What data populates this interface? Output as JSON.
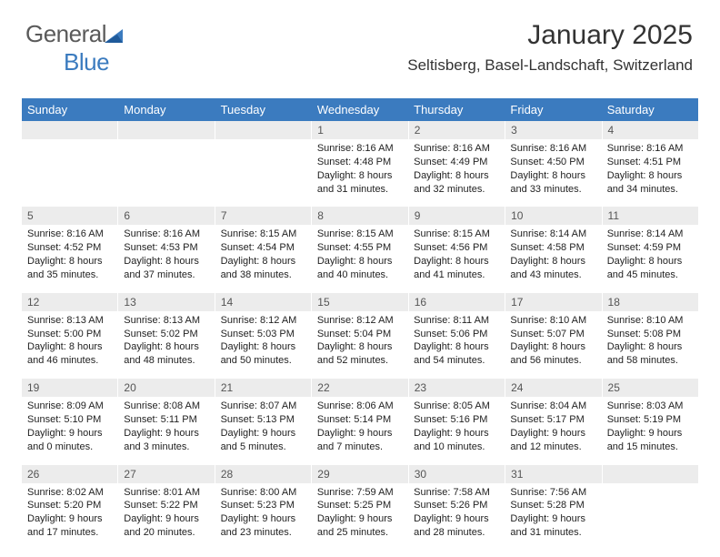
{
  "brand": {
    "word1": "General",
    "word2": "Blue"
  },
  "title": "January 2025",
  "location": "Seltisberg, Basel-Landschaft, Switzerland",
  "colors": {
    "header_bg": "#3b7bbf",
    "daynum_bg": "#ececec",
    "text": "#333333"
  },
  "dayHeaders": [
    "Sunday",
    "Monday",
    "Tuesday",
    "Wednesday",
    "Thursday",
    "Friday",
    "Saturday"
  ],
  "weeks": [
    {
      "nums": [
        "",
        "",
        "",
        "1",
        "2",
        "3",
        "4"
      ],
      "data": [
        {
          "sunrise": "",
          "sunset": "",
          "daylight": ""
        },
        {
          "sunrise": "",
          "sunset": "",
          "daylight": ""
        },
        {
          "sunrise": "",
          "sunset": "",
          "daylight": ""
        },
        {
          "sunrise": "Sunrise: 8:16 AM",
          "sunset": "Sunset: 4:48 PM",
          "daylight": "Daylight: 8 hours and 31 minutes."
        },
        {
          "sunrise": "Sunrise: 8:16 AM",
          "sunset": "Sunset: 4:49 PM",
          "daylight": "Daylight: 8 hours and 32 minutes."
        },
        {
          "sunrise": "Sunrise: 8:16 AM",
          "sunset": "Sunset: 4:50 PM",
          "daylight": "Daylight: 8 hours and 33 minutes."
        },
        {
          "sunrise": "Sunrise: 8:16 AM",
          "sunset": "Sunset: 4:51 PM",
          "daylight": "Daylight: 8 hours and 34 minutes."
        }
      ]
    },
    {
      "nums": [
        "5",
        "6",
        "7",
        "8",
        "9",
        "10",
        "11"
      ],
      "data": [
        {
          "sunrise": "Sunrise: 8:16 AM",
          "sunset": "Sunset: 4:52 PM",
          "daylight": "Daylight: 8 hours and 35 minutes."
        },
        {
          "sunrise": "Sunrise: 8:16 AM",
          "sunset": "Sunset: 4:53 PM",
          "daylight": "Daylight: 8 hours and 37 minutes."
        },
        {
          "sunrise": "Sunrise: 8:15 AM",
          "sunset": "Sunset: 4:54 PM",
          "daylight": "Daylight: 8 hours and 38 minutes."
        },
        {
          "sunrise": "Sunrise: 8:15 AM",
          "sunset": "Sunset: 4:55 PM",
          "daylight": "Daylight: 8 hours and 40 minutes."
        },
        {
          "sunrise": "Sunrise: 8:15 AM",
          "sunset": "Sunset: 4:56 PM",
          "daylight": "Daylight: 8 hours and 41 minutes."
        },
        {
          "sunrise": "Sunrise: 8:14 AM",
          "sunset": "Sunset: 4:58 PM",
          "daylight": "Daylight: 8 hours and 43 minutes."
        },
        {
          "sunrise": "Sunrise: 8:14 AM",
          "sunset": "Sunset: 4:59 PM",
          "daylight": "Daylight: 8 hours and 45 minutes."
        }
      ]
    },
    {
      "nums": [
        "12",
        "13",
        "14",
        "15",
        "16",
        "17",
        "18"
      ],
      "data": [
        {
          "sunrise": "Sunrise: 8:13 AM",
          "sunset": "Sunset: 5:00 PM",
          "daylight": "Daylight: 8 hours and 46 minutes."
        },
        {
          "sunrise": "Sunrise: 8:13 AM",
          "sunset": "Sunset: 5:02 PM",
          "daylight": "Daylight: 8 hours and 48 minutes."
        },
        {
          "sunrise": "Sunrise: 8:12 AM",
          "sunset": "Sunset: 5:03 PM",
          "daylight": "Daylight: 8 hours and 50 minutes."
        },
        {
          "sunrise": "Sunrise: 8:12 AM",
          "sunset": "Sunset: 5:04 PM",
          "daylight": "Daylight: 8 hours and 52 minutes."
        },
        {
          "sunrise": "Sunrise: 8:11 AM",
          "sunset": "Sunset: 5:06 PM",
          "daylight": "Daylight: 8 hours and 54 minutes."
        },
        {
          "sunrise": "Sunrise: 8:10 AM",
          "sunset": "Sunset: 5:07 PM",
          "daylight": "Daylight: 8 hours and 56 minutes."
        },
        {
          "sunrise": "Sunrise: 8:10 AM",
          "sunset": "Sunset: 5:08 PM",
          "daylight": "Daylight: 8 hours and 58 minutes."
        }
      ]
    },
    {
      "nums": [
        "19",
        "20",
        "21",
        "22",
        "23",
        "24",
        "25"
      ],
      "data": [
        {
          "sunrise": "Sunrise: 8:09 AM",
          "sunset": "Sunset: 5:10 PM",
          "daylight": "Daylight: 9 hours and 0 minutes."
        },
        {
          "sunrise": "Sunrise: 8:08 AM",
          "sunset": "Sunset: 5:11 PM",
          "daylight": "Daylight: 9 hours and 3 minutes."
        },
        {
          "sunrise": "Sunrise: 8:07 AM",
          "sunset": "Sunset: 5:13 PM",
          "daylight": "Daylight: 9 hours and 5 minutes."
        },
        {
          "sunrise": "Sunrise: 8:06 AM",
          "sunset": "Sunset: 5:14 PM",
          "daylight": "Daylight: 9 hours and 7 minutes."
        },
        {
          "sunrise": "Sunrise: 8:05 AM",
          "sunset": "Sunset: 5:16 PM",
          "daylight": "Daylight: 9 hours and 10 minutes."
        },
        {
          "sunrise": "Sunrise: 8:04 AM",
          "sunset": "Sunset: 5:17 PM",
          "daylight": "Daylight: 9 hours and 12 minutes."
        },
        {
          "sunrise": "Sunrise: 8:03 AM",
          "sunset": "Sunset: 5:19 PM",
          "daylight": "Daylight: 9 hours and 15 minutes."
        }
      ]
    },
    {
      "nums": [
        "26",
        "27",
        "28",
        "29",
        "30",
        "31",
        ""
      ],
      "data": [
        {
          "sunrise": "Sunrise: 8:02 AM",
          "sunset": "Sunset: 5:20 PM",
          "daylight": "Daylight: 9 hours and 17 minutes."
        },
        {
          "sunrise": "Sunrise: 8:01 AM",
          "sunset": "Sunset: 5:22 PM",
          "daylight": "Daylight: 9 hours and 20 minutes."
        },
        {
          "sunrise": "Sunrise: 8:00 AM",
          "sunset": "Sunset: 5:23 PM",
          "daylight": "Daylight: 9 hours and 23 minutes."
        },
        {
          "sunrise": "Sunrise: 7:59 AM",
          "sunset": "Sunset: 5:25 PM",
          "daylight": "Daylight: 9 hours and 25 minutes."
        },
        {
          "sunrise": "Sunrise: 7:58 AM",
          "sunset": "Sunset: 5:26 PM",
          "daylight": "Daylight: 9 hours and 28 minutes."
        },
        {
          "sunrise": "Sunrise: 7:56 AM",
          "sunset": "Sunset: 5:28 PM",
          "daylight": "Daylight: 9 hours and 31 minutes."
        },
        {
          "sunrise": "",
          "sunset": "",
          "daylight": ""
        }
      ]
    }
  ]
}
